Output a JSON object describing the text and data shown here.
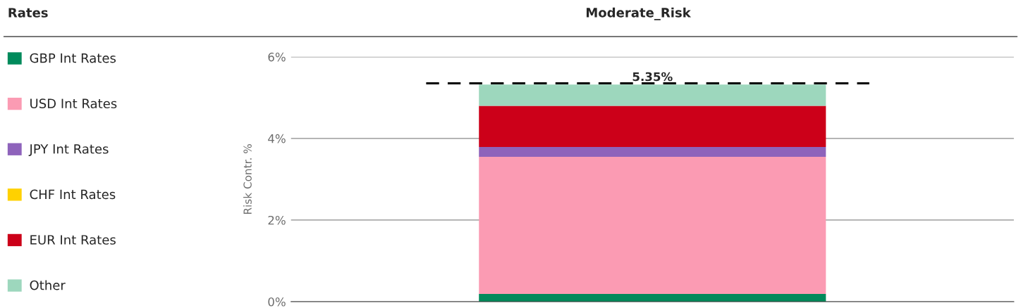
{
  "chart_data": {
    "type": "bar",
    "title": "Moderate_Risk",
    "ylabel": "Risk Contr. %",
    "legend_title": "Rates",
    "stacked": true,
    "categories": [
      null
    ],
    "series": [
      {
        "name": "GBP Int Rates",
        "color": "#008a5b",
        "values": [
          0.19
        ]
      },
      {
        "name": "USD Int Rates",
        "color": "#fb9bb3",
        "values": [
          3.36
        ]
      },
      {
        "name": "JPY Int Rates",
        "color": "#8e63bb",
        "values": [
          0.24
        ]
      },
      {
        "name": "CHF Int Rates",
        "color": "#ffd100",
        "values": [
          0
        ]
      },
      {
        "name": "EUR Int Rates",
        "color": "#cc0019",
        "values": [
          1.01
        ]
      },
      {
        "name": "Other",
        "color": "#9dd7bd",
        "values": [
          0.52
        ]
      }
    ],
    "ylim": [
      0,
      6
    ],
    "yticks": [
      {
        "value": 0,
        "label": "0%"
      },
      {
        "value": 2,
        "label": "2%"
      },
      {
        "value": 4,
        "label": "4%"
      },
      {
        "value": 6,
        "label": "6%"
      }
    ],
    "ref_lines": [
      {
        "axis": "y",
        "value": 5.35,
        "label": "5.35%",
        "color": "#000000",
        "line_style": "dashed"
      }
    ],
    "grid": "y",
    "legend": "left"
  }
}
